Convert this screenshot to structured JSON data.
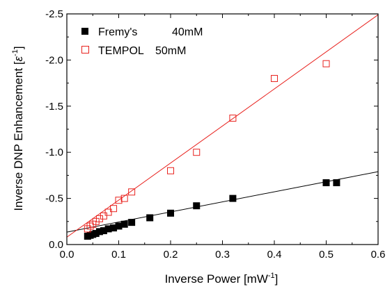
{
  "chart_data": {
    "type": "scatter",
    "title": "",
    "xlabel_main": "Inverse Power [mW",
    "xlabel_sup": "-1",
    "xlabel_end": "]",
    "ylabel_main": "Inverse DNP Enhancement [",
    "ylabel_eps": "ε",
    "ylabel_sup": "-1",
    "ylabel_end": "]",
    "xlim": [
      0.0,
      0.6
    ],
    "ylim": [
      0.0,
      -2.5
    ],
    "x_ticks": [
      0.0,
      0.1,
      0.2,
      0.3,
      0.4,
      0.5,
      0.6
    ],
    "x_tick_labels": [
      "0.0",
      "0.1",
      "0.2",
      "0.3",
      "0.4",
      "0.5",
      "0.6"
    ],
    "y_ticks": [
      0.0,
      -0.5,
      -1.0,
      -1.5,
      -2.0,
      -2.5
    ],
    "y_tick_labels": [
      "0.0",
      "-0.5",
      "-1.0",
      "-1.5",
      "-2.0",
      "-2.5"
    ],
    "grid": false,
    "legend_position": "top-left",
    "series": [
      {
        "name": "Fremy's",
        "concentration": "40mM",
        "color": "#000000",
        "marker": "filled-square",
        "x": [
          0.04,
          0.045,
          0.05,
          0.056,
          0.063,
          0.071,
          0.08,
          0.09,
          0.1,
          0.111,
          0.125,
          0.16,
          0.2,
          0.25,
          0.32,
          0.5,
          0.52
        ],
        "y": [
          -0.09,
          -0.1,
          -0.11,
          -0.12,
          -0.14,
          -0.15,
          -0.17,
          -0.18,
          -0.2,
          -0.22,
          -0.24,
          -0.29,
          -0.34,
          -0.42,
          -0.5,
          -0.67,
          -0.67
        ],
        "fit": {
          "x": [
            0.0,
            0.6
          ],
          "y": [
            -0.135,
            -0.79
          ]
        }
      },
      {
        "name": "TEMPOL",
        "concentration": "50mM",
        "color": "#e8211d",
        "marker": "open-square",
        "x": [
          0.04,
          0.045,
          0.05,
          0.056,
          0.063,
          0.071,
          0.08,
          0.09,
          0.1,
          0.111,
          0.125,
          0.2,
          0.25,
          0.32,
          0.4,
          0.5
        ],
        "y": [
          -0.17,
          -0.2,
          -0.22,
          -0.25,
          -0.28,
          -0.31,
          -0.35,
          -0.39,
          -0.48,
          -0.5,
          -0.57,
          -0.8,
          -1.0,
          -1.37,
          -1.8,
          -1.96
        ],
        "fit": {
          "x": [
            0.0,
            0.6
          ],
          "y": [
            -0.08,
            -2.49
          ]
        }
      }
    ]
  }
}
